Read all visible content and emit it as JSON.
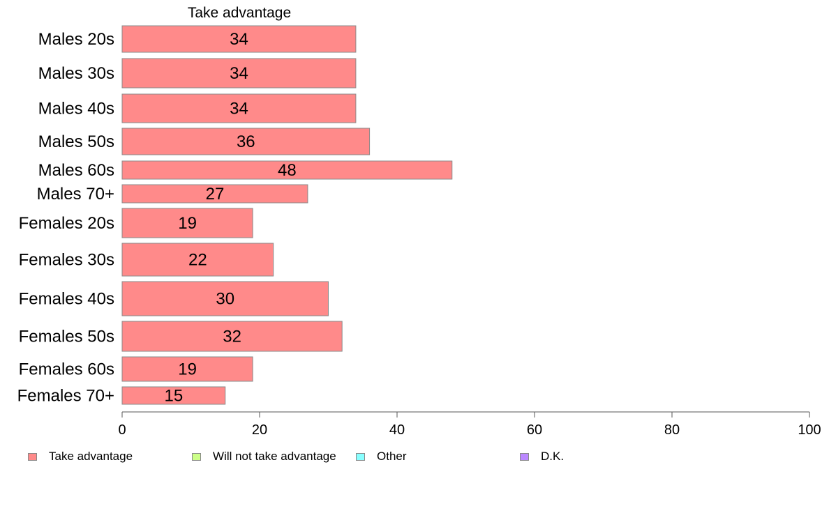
{
  "chart_data": {
    "type": "bar",
    "orientation": "horizontal",
    "title": "Take advantage",
    "categories": [
      "Males 20s",
      "Males 30s",
      "Males 40s",
      "Males 50s",
      "Males 60s",
      "Males 70+",
      "Females 20s",
      "Females 30s",
      "Females 40s",
      "Females 50s",
      "Females 60s",
      "Females 70+"
    ],
    "series": [
      {
        "name": "Take advantage",
        "values": [
          34,
          34,
          34,
          36,
          48,
          27,
          19,
          22,
          30,
          32,
          19,
          15
        ],
        "color": "#ff8a8a"
      }
    ],
    "xlim": [
      0,
      100
    ],
    "xticks": [
      0,
      20,
      40,
      60,
      80,
      100
    ],
    "grid": false,
    "legend": {
      "placement": "bottom",
      "entries": [
        {
          "label": "Take advantage",
          "color": "#ff8a8a"
        },
        {
          "label": "Will not take advantage",
          "color": "#ccff88"
        },
        {
          "label": "Other",
          "color": "#88ffff"
        },
        {
          "label": "D.K.",
          "color": "#bb88ff"
        }
      ]
    }
  }
}
